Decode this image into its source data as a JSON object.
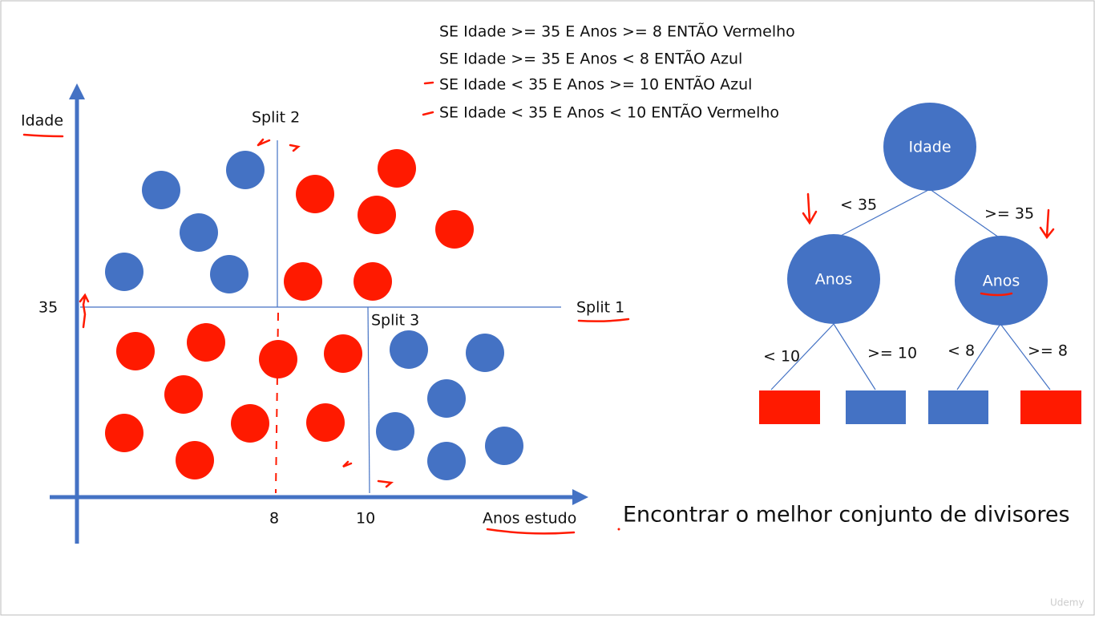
{
  "rules": [
    "SE Idade >= 35 E Anos >= 8 ENTÃO Vermelho",
    "SE Idade >= 35 E Anos < 8 ENTÃO Azul",
    "SE Idade < 35 E Anos >= 10 ENTÃO Azul",
    "SE Idade < 35 E Anos < 10 ENTÃO Vermelho"
  ],
  "plot": {
    "y_label": "Idade",
    "x_label": "Anos estudo",
    "y_mark": "35",
    "x_marks": [
      "8",
      "10"
    ],
    "splits": [
      "Split 1",
      "Split 2",
      "Split 3"
    ]
  },
  "tree": {
    "root": "Idade",
    "left": "Anos",
    "right": "Anos",
    "edges": [
      "< 35",
      ">= 35",
      "< 10",
      ">= 10",
      "< 8",
      ">= 8"
    ]
  },
  "caption": "Encontrar o melhor conjunto de divisores",
  "watermark": "Udemy"
}
